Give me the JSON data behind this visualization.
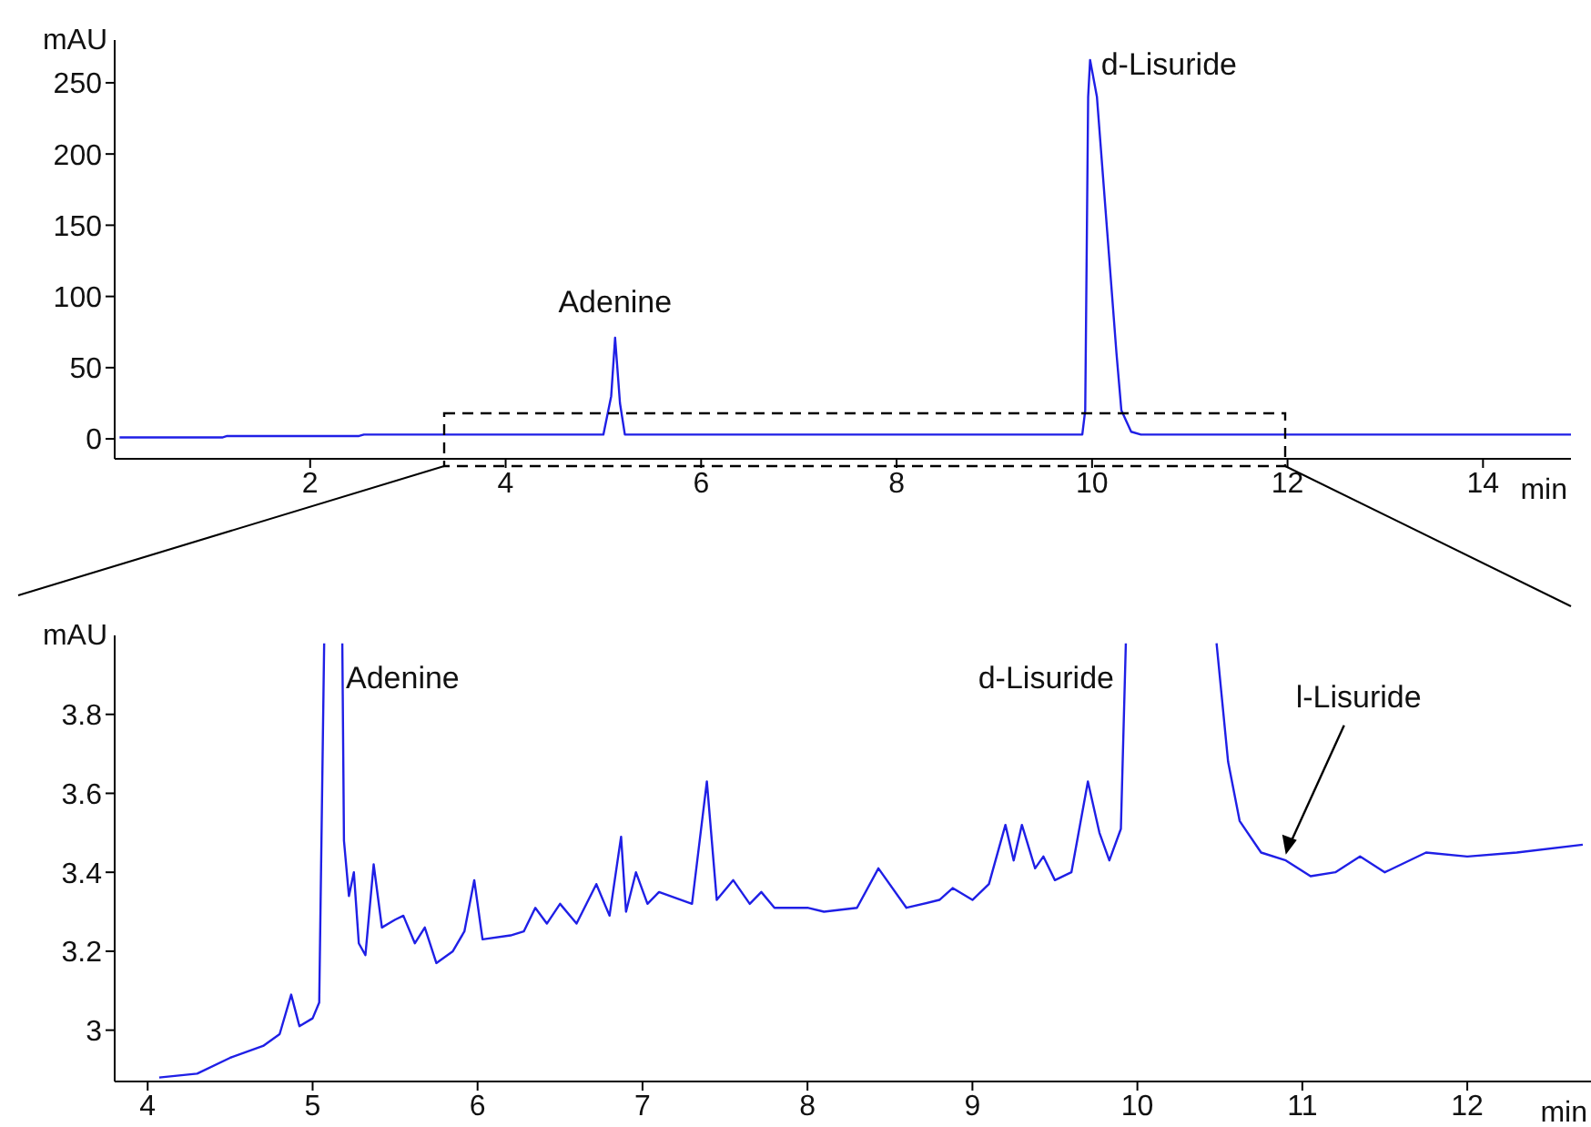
{
  "chart_data": [
    {
      "type": "line",
      "xlabel": "min",
      "ylabel": "mAU",
      "xlim": [
        0,
        14.9
      ],
      "ylim": [
        -14,
        280
      ],
      "xticks": [
        2,
        4,
        6,
        8,
        10,
        12,
        14
      ],
      "yticks": [
        0,
        50,
        100,
        150,
        200,
        250
      ],
      "grid": false,
      "marker": "none",
      "line_style": "solid",
      "x": [
        0.05,
        1.1,
        1.15,
        2.5,
        2.55,
        5.0,
        5.08,
        5.12,
        5.17,
        5.22,
        9.9,
        9.93,
        9.96,
        9.98,
        10.05,
        10.25,
        10.3,
        10.4,
        10.5,
        14.9
      ],
      "series": [
        {
          "color": "#1f1fe6",
          "values": [
            1,
            1,
            2,
            2,
            3,
            3,
            30,
            71,
            25,
            3,
            3,
            20,
            240,
            266,
            240,
            60,
            20,
            5,
            3,
            3
          ]
        }
      ],
      "annotations": [
        {
          "text": "Adenine",
          "x": 5.12,
          "y": 71
        },
        {
          "text": "d-Lisuride",
          "x": 9.98,
          "y": 266
        }
      ]
    },
    {
      "type": "line",
      "xlabel": "min",
      "ylabel": "mAU",
      "xlim": [
        3.8,
        12.75
      ],
      "ylim": [
        2.87,
        4.0
      ],
      "xticks": [
        4,
        5,
        6,
        7,
        8,
        9,
        10,
        11,
        12
      ],
      "yticks": [
        3,
        3.2,
        3.4,
        3.6,
        3.8
      ],
      "grid": false,
      "marker": "none",
      "line_style": "solid",
      "x": [
        4.07,
        4.3,
        4.5,
        4.7,
        4.8,
        4.87,
        4.92,
        5.0,
        5.04,
        5.07,
        5.12,
        5.18,
        5.19,
        5.22,
        5.25,
        5.28,
        5.32,
        5.37,
        5.42,
        5.5,
        5.55,
        5.62,
        5.68,
        5.75,
        5.85,
        5.92,
        5.98,
        6.03,
        6.2,
        6.28,
        6.35,
        6.42,
        6.5,
        6.6,
        6.72,
        6.8,
        6.87,
        6.9,
        6.96,
        7.03,
        7.1,
        7.3,
        7.39,
        7.45,
        7.55,
        7.65,
        7.72,
        7.8,
        8.0,
        8.1,
        8.3,
        8.43,
        8.6,
        8.8,
        8.88,
        9.0,
        9.1,
        9.2,
        9.25,
        9.3,
        9.38,
        9.43,
        9.5,
        9.6,
        9.7,
        9.77,
        9.83,
        9.9,
        9.93,
        10.2,
        10.48,
        10.55,
        10.62,
        10.75,
        10.9,
        11.05,
        11.2,
        11.35,
        11.5,
        11.75,
        12.0,
        12.3,
        12.7
      ],
      "series": [
        {
          "color": "#1f1fe6",
          "values": [
            2.88,
            2.89,
            2.93,
            2.96,
            2.99,
            3.09,
            3.01,
            3.03,
            3.07,
            3.98,
            null,
            3.98,
            3.48,
            3.34,
            3.4,
            3.22,
            3.19,
            3.42,
            3.26,
            3.28,
            3.29,
            3.22,
            3.26,
            3.17,
            3.2,
            3.25,
            3.38,
            3.23,
            3.24,
            3.25,
            3.31,
            3.27,
            3.32,
            3.27,
            3.37,
            3.29,
            3.49,
            3.3,
            3.4,
            3.32,
            3.35,
            3.32,
            3.63,
            3.33,
            3.38,
            3.32,
            3.35,
            3.31,
            3.31,
            3.3,
            3.31,
            3.41,
            3.31,
            3.33,
            3.36,
            3.33,
            3.37,
            3.52,
            3.43,
            3.52,
            3.41,
            3.44,
            3.38,
            3.4,
            3.63,
            3.5,
            3.43,
            3.51,
            3.98,
            null,
            3.98,
            3.68,
            3.53,
            3.45,
            3.43,
            3.39,
            3.4,
            3.44,
            3.4,
            3.45,
            3.44,
            3.45,
            3.47
          ]
        }
      ],
      "annotations": [
        "Adenine",
        "d-Lisuride",
        {
          "text": "l-Lisuride",
          "x": 10.9,
          "y": 3.44
        }
      ]
    }
  ]
}
